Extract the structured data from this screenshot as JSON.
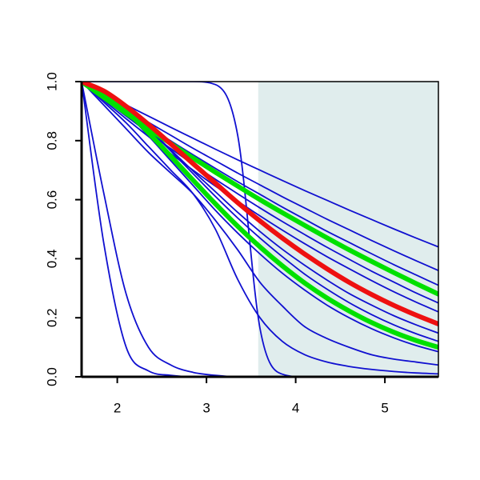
{
  "chart_data": {
    "type": "line",
    "x": [
      1.6,
      1.85,
      2.1,
      2.35,
      2.6,
      2.85,
      3.1,
      3.35,
      3.6,
      3.85,
      4.1,
      4.35,
      4.6,
      4.85,
      5.1,
      5.35,
      5.6
    ],
    "xlim": [
      1.6,
      5.6
    ],
    "xticks": [
      2,
      3,
      4,
      5
    ],
    "ylim": [
      0,
      1
    ],
    "yticks": [
      {
        "value": 0,
        "label": "0.0"
      },
      0.2,
      0.4,
      0.6,
      0.8,
      {
        "value": 1,
        "label": "1.0"
      }
    ],
    "shaded_region": {
      "xlim": [
        3.58,
        5.6
      ],
      "color": "#e0eded"
    },
    "series": [
      {
        "color": "#1010d0",
        "values": [
          1.0,
          0.96,
          0.921,
          0.883,
          0.845,
          0.808,
          0.771,
          0.735,
          0.7,
          0.665,
          0.631,
          0.598,
          0.565,
          0.533,
          0.501,
          0.47,
          0.44
        ]
      },
      {
        "color": "#1010d0",
        "values": [
          1.0,
          0.953,
          0.907,
          0.862,
          0.818,
          0.774,
          0.732,
          0.69,
          0.65,
          0.61,
          0.572,
          0.534,
          0.498,
          0.462,
          0.427,
          0.393,
          0.36
        ]
      },
      {
        "color": "#1010d0",
        "values": [
          1.0,
          0.948,
          0.897,
          0.848,
          0.799,
          0.752,
          0.706,
          0.661,
          0.618,
          0.575,
          0.534,
          0.493,
          0.455,
          0.417,
          0.38,
          0.345,
          0.31
        ]
      },
      {
        "color": "#1010d0",
        "values": [
          1.0,
          0.941,
          0.883,
          0.827,
          0.773,
          0.72,
          0.669,
          0.62,
          0.572,
          0.526,
          0.482,
          0.439,
          0.398,
          0.358,
          0.321,
          0.284,
          0.25
        ]
      },
      {
        "color": "#1010d0",
        "values": [
          1.0,
          0.936,
          0.874,
          0.814,
          0.756,
          0.7,
          0.646,
          0.595,
          0.545,
          0.497,
          0.451,
          0.407,
          0.366,
          0.326,
          0.288,
          0.253,
          0.22
        ]
      },
      {
        "color": "#1010d0",
        "values": [
          1.0,
          0.965,
          0.907,
          0.841,
          0.769,
          0.697,
          0.627,
          0.557,
          0.492,
          0.432,
          0.378,
          0.328,
          0.282,
          0.243,
          0.207,
          0.176,
          0.148
        ]
      },
      {
        "color": "#1010d0",
        "values": [
          1.0,
          0.967,
          0.909,
          0.84,
          0.765,
          0.688,
          0.611,
          0.538,
          0.47,
          0.407,
          0.348,
          0.297,
          0.251,
          0.211,
          0.176,
          0.146,
          0.12
        ]
      },
      {
        "color": "#1010d0",
        "values": [
          1.0,
          0.962,
          0.895,
          0.816,
          0.732,
          0.648,
          0.564,
          0.487,
          0.416,
          0.351,
          0.294,
          0.243,
          0.2,
          0.163,
          0.132,
          0.106,
          0.085
        ]
      },
      {
        "color": "#1010d0",
        "values": [
          1.0,
          1.0,
          1.0,
          1.0,
          1.0,
          1.0,
          0.99,
          0.818,
          0.164,
          0.009,
          0,
          0,
          0,
          0,
          0,
          0,
          0
        ]
      },
      {
        "color": "#1010d0",
        "values": [
          1.0,
          0.93,
          0.86,
          0.78,
          0.7,
          0.62,
          0.5,
          0.33,
          0.2,
          0.12,
          0.075,
          0.05,
          0.035,
          0.025,
          0.018,
          0.013,
          0.01
        ]
      },
      {
        "color": "#1010d0",
        "values": [
          1.0,
          0.92,
          0.84,
          0.76,
          0.69,
          0.62,
          0.53,
          0.43,
          0.32,
          0.24,
          0.17,
          0.13,
          0.1,
          0.075,
          0.06,
          0.05,
          0.04
        ]
      },
      {
        "color": "#1010d0",
        "values": [
          1.0,
          0.45,
          0.1,
          0.02,
          0.005,
          0,
          0,
          0,
          0,
          0,
          0,
          0,
          0,
          0,
          0,
          0,
          0
        ]
      },
      {
        "color": "#1010d0",
        "values": [
          1.0,
          0.62,
          0.28,
          0.1,
          0.04,
          0.015,
          0.005,
          0,
          0,
          0,
          0,
          0,
          0,
          0,
          0,
          0,
          0
        ]
      },
      {
        "color": "#00e000",
        "values": [
          1.0,
          0.946,
          0.893,
          0.841,
          0.79,
          0.741,
          0.693,
          0.646,
          0.6,
          0.556,
          0.513,
          0.471,
          0.43,
          0.391,
          0.353,
          0.316,
          0.28
        ]
      },
      {
        "color": "#00e000",
        "values": [
          1.0,
          0.964,
          0.901,
          0.827,
          0.747,
          0.666,
          0.586,
          0.51,
          0.44,
          0.376,
          0.318,
          0.267,
          0.223,
          0.184,
          0.151,
          0.123,
          0.1
        ]
      },
      {
        "color": "#ee1010",
        "values": [
          1.0,
          0.968,
          0.916,
          0.855,
          0.789,
          0.722,
          0.656,
          0.59,
          0.528,
          0.47,
          0.416,
          0.366,
          0.32,
          0.279,
          0.242,
          0.209,
          0.179
        ]
      }
    ]
  }
}
